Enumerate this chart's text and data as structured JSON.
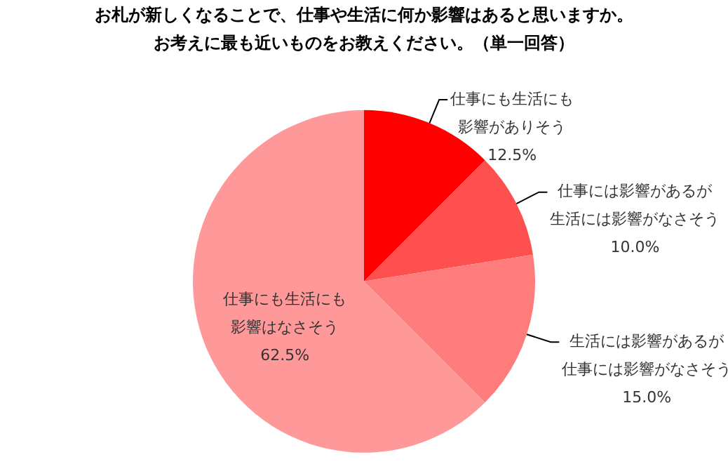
{
  "chart_data": {
    "type": "pie",
    "title": "お札が新しくなることで、仕事や生活に何か影響はあると思いますか。",
    "subtitle": "お考えに最も近いものをお教えください。（単一回答）",
    "categories": [
      "仕事にも生活にも影響がありそう",
      "仕事には影響があるが生活には影響がなさそう",
      "生活には影響があるが仕事には影響がなさそう",
      "仕事にも生活にも影響はなさそう"
    ],
    "values": [
      12.5,
      10.0,
      15.0,
      62.5
    ],
    "value_labels": [
      "12.5%",
      "10.0%",
      "15.0%",
      "62.5%"
    ],
    "colors": [
      "#ff0000",
      "#ff5050",
      "#ff7c7c",
      "#ff9999"
    ],
    "legend": false
  }
}
